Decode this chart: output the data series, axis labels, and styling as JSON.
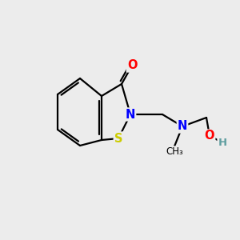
{
  "background_color": "#ececec",
  "atom_colors": {
    "C": "#000000",
    "N": "#0000ff",
    "O": "#ff0000",
    "S": "#cccc00",
    "H": "#5f9ea0"
  },
  "bond_color": "#000000",
  "bond_width": 1.6,
  "figsize": [
    3.0,
    3.0
  ],
  "dpi": 100,
  "xlim": [
    0,
    10
  ],
  "ylim": [
    0,
    10
  ]
}
